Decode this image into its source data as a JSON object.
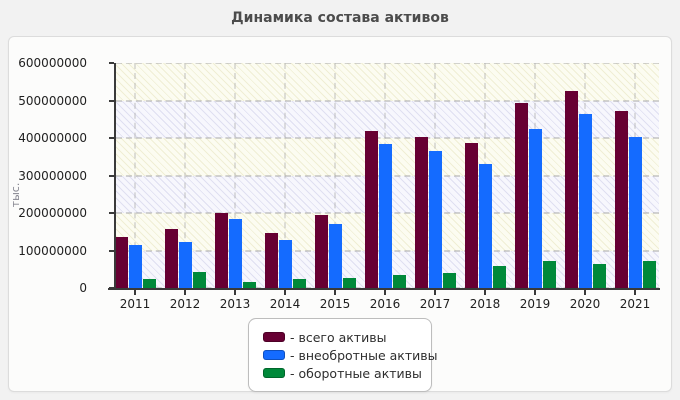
{
  "chart_data": {
    "type": "bar",
    "title": "Динамика состава активов",
    "ylabel": "тыс.",
    "xlabel": "",
    "categories": [
      "2011",
      "2012",
      "2013",
      "2014",
      "2015",
      "2016",
      "2017",
      "2018",
      "2019",
      "2020",
      "2021"
    ],
    "series": [
      {
        "name": "- всего активы",
        "color": "#670033",
        "values": [
          137000000,
          158000000,
          199000000,
          146000000,
          196000000,
          418000000,
          402000000,
          388000000,
          493000000,
          525000000,
          472000000
        ]
      },
      {
        "name": "- внеобротные активы",
        "color": "#146bff",
        "values": [
          116000000,
          122000000,
          184000000,
          128000000,
          172000000,
          385000000,
          365000000,
          332000000,
          424000000,
          465000000,
          402000000
        ]
      },
      {
        "name": "- оборотные активы",
        "color": "#00893a",
        "values": [
          25000000,
          42000000,
          17000000,
          24000000,
          26000000,
          35000000,
          40000000,
          59000000,
          71000000,
          64000000,
          73000000
        ]
      }
    ],
    "ylim": [
      0,
      600000000
    ],
    "ytick_step": 100000000,
    "ytick_labels": [
      "0",
      "100000000",
      "200000000",
      "300000000",
      "400000000",
      "500000000",
      "600000000"
    ],
    "grid": "dashed",
    "legend_position": "bottom-center",
    "plot_band_colors": {
      "cream": "#fcfcf1",
      "lavender": "#f7f7fd"
    },
    "axis_color": "#3a3a3a",
    "page_background": "#f2f2f2"
  }
}
